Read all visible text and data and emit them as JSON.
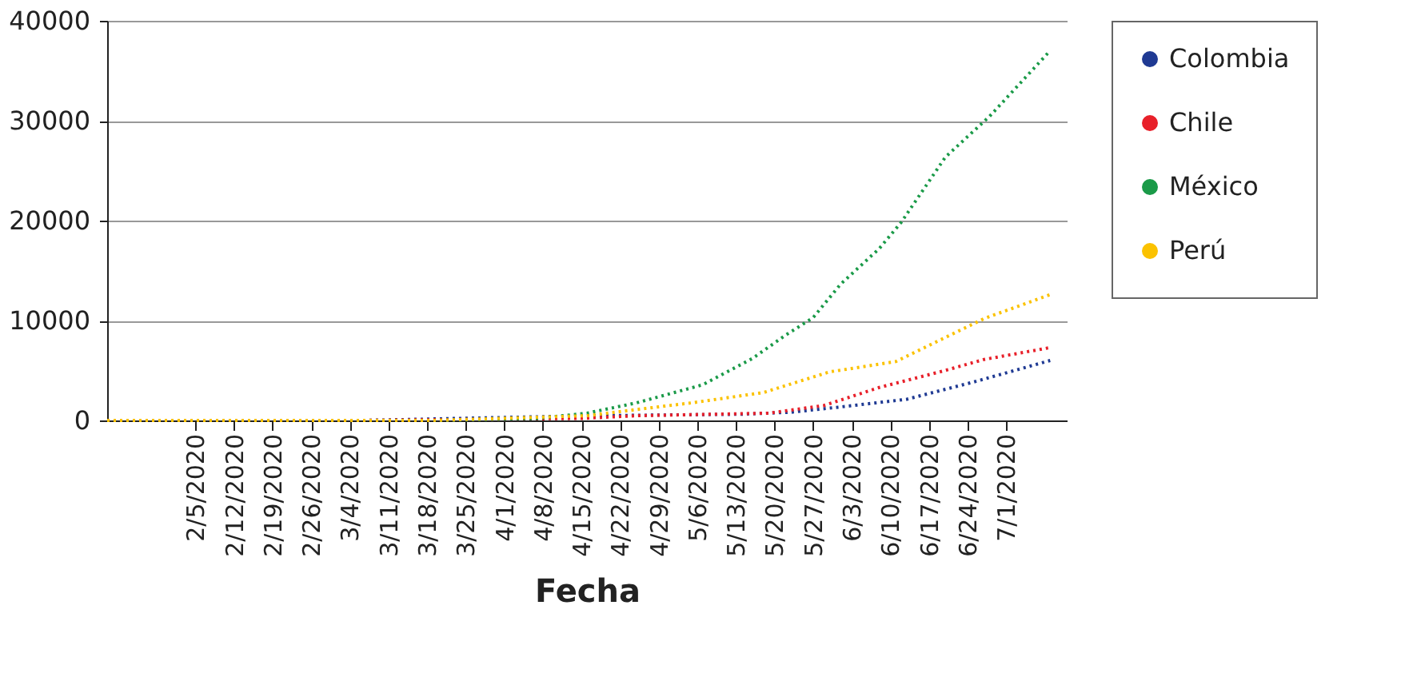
{
  "chart_data": {
    "type": "line",
    "xlabel": "Fecha",
    "legend": "right",
    "grid": "y",
    "line_style": "dotted",
    "marker": "none",
    "xlim": [
      "2020-01-20",
      "2020-07-12"
    ],
    "ylim": [
      0,
      40000
    ],
    "yticks": [
      0,
      10000,
      20000,
      30000,
      40000
    ],
    "xticks": [
      {
        "value": "2020-02-05",
        "label": "2/5/2020"
      },
      {
        "value": "2020-02-12",
        "label": "2/12/2020"
      },
      {
        "value": "2020-02-19",
        "label": "2/19/2020"
      },
      {
        "value": "2020-02-26",
        "label": "2/26/2020"
      },
      {
        "value": "2020-03-04",
        "label": "3/4/2020"
      },
      {
        "value": "2020-03-11",
        "label": "3/11/2020"
      },
      {
        "value": "2020-03-18",
        "label": "3/18/2020"
      },
      {
        "value": "2020-03-25",
        "label": "3/25/2020"
      },
      {
        "value": "2020-04-01",
        "label": "4/1/2020"
      },
      {
        "value": "2020-04-08",
        "label": "4/8/2020"
      },
      {
        "value": "2020-04-15",
        "label": "4/15/2020"
      },
      {
        "value": "2020-04-22",
        "label": "4/22/2020"
      },
      {
        "value": "2020-04-29",
        "label": "4/29/2020"
      },
      {
        "value": "2020-05-06",
        "label": "5/6/2020"
      },
      {
        "value": "2020-05-13",
        "label": "5/13/2020"
      },
      {
        "value": "2020-05-20",
        "label": "5/20/2020"
      },
      {
        "value": "2020-05-27",
        "label": "5/27/2020"
      },
      {
        "value": "2020-06-03",
        "label": "6/3/2020"
      },
      {
        "value": "2020-06-10",
        "label": "6/10/2020"
      },
      {
        "value": "2020-06-17",
        "label": "6/17/2020"
      },
      {
        "value": "2020-06-24",
        "label": "6/24/2020"
      },
      {
        "value": "2020-07-01",
        "label": "7/1/2020"
      }
    ],
    "series": [
      {
        "name": "Colombia",
        "color": "#1f3a93",
        "x": [
          "2020-01-20",
          "2020-03-06",
          "2020-04-16",
          "2020-05-14",
          "2020-05-23",
          "2020-06-01",
          "2020-06-13",
          "2020-06-25",
          "2020-07-09"
        ],
        "values": [
          0,
          0,
          470,
          620,
          820,
          1350,
          2120,
          3830,
          6000
        ]
      },
      {
        "name": "Chile",
        "color": "#e8202a",
        "x": [
          "2020-01-20",
          "2020-03-05",
          "2020-04-15",
          "2020-04-25",
          "2020-05-19",
          "2020-05-29",
          "2020-06-08",
          "2020-06-20",
          "2020-06-27",
          "2020-07-09"
        ],
        "values": [
          0,
          0,
          200,
          470,
          730,
          1500,
          3300,
          5010,
          6100,
          7290
        ]
      },
      {
        "name": "México",
        "color": "#1a9a48",
        "x": [
          "2020-01-20",
          "2020-03-19",
          "2020-04-07",
          "2020-04-16",
          "2020-04-25",
          "2020-05-07",
          "2020-05-16",
          "2020-05-22",
          "2020-05-27",
          "2020-06-01",
          "2020-06-08",
          "2020-06-12",
          "2020-06-20",
          "2020-06-28",
          "2020-07-09"
        ],
        "values": [
          0,
          0,
          200,
          730,
          1760,
          3570,
          6200,
          8530,
          10280,
          13640,
          17200,
          19840,
          26360,
          30430,
          37010
        ]
      },
      {
        "name": "Perú",
        "color": "#fbc200",
        "x": [
          "2020-01-20",
          "2020-03-19",
          "2020-04-16",
          "2020-04-25",
          "2020-05-05",
          "2020-05-18",
          "2020-05-30",
          "2020-06-11",
          "2020-06-27",
          "2020-07-09"
        ],
        "values": [
          0,
          0,
          470,
          1090,
          1760,
          2790,
          4860,
          5890,
          10190,
          12600
        ]
      }
    ]
  }
}
